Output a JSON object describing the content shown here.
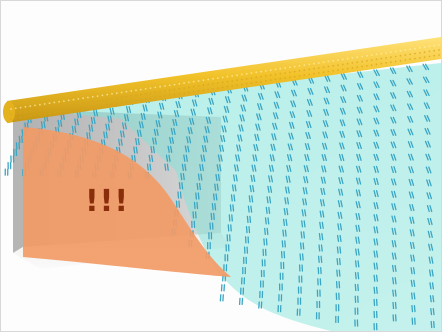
{
  "warning_text": "!!!",
  "colors": {
    "rod": "#f2c22a",
    "rod_highlight": "#ffe27a",
    "rod_shadow": "#c79614",
    "field_fill": "#7fe3d9",
    "field_dash": "#3aa6c4",
    "wall": "#c9c9c9",
    "wall_dark": "#a9a9a9",
    "orange_region": "#f29a66",
    "warning_text": "#8a2d0a"
  },
  "icons": {
    "rod": "cylindrical-rod",
    "field": "flow-field",
    "wall": "back-wall",
    "region": "danger-region"
  }
}
